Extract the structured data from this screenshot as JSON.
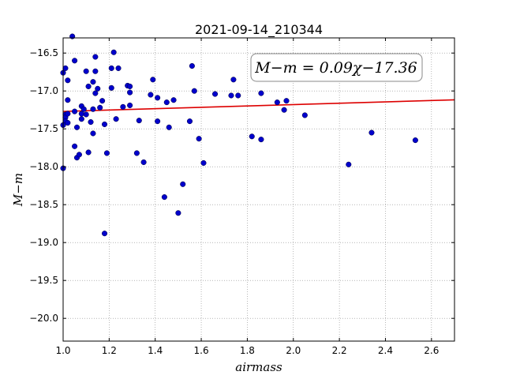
{
  "chart_data": {
    "type": "scatter",
    "title": "2021-09-14_210344",
    "xlabel": "airmass",
    "ylabel": "M−m",
    "xlim": [
      1.0,
      2.7
    ],
    "ylim": [
      -20.3,
      -16.3
    ],
    "y_inverted": true,
    "grid": true,
    "xticks": [
      "1.0",
      "1.2",
      "1.4",
      "1.6",
      "1.8",
      "2.0",
      "2.2",
      "2.4",
      "2.6"
    ],
    "yticks": [
      "−16.5",
      "−17.0",
      "−17.5",
      "−18.0",
      "−18.5",
      "−19.0",
      "−19.5",
      "−20.0"
    ],
    "annotation": "M−m = 0.09χ−17.36",
    "colors": {
      "points": "#0000cc",
      "fit_line": "#dd0000",
      "grid": "#888888"
    },
    "fit_line": {
      "slope": 0.09,
      "intercept": -17.36,
      "x": [
        1.0,
        2.7
      ]
    },
    "points": [
      {
        "x": 1.0,
        "y": -16.76
      },
      {
        "x": 1.01,
        "y": -16.7
      },
      {
        "x": 1.01,
        "y": -17.31
      },
      {
        "x": 1.01,
        "y": -17.35
      },
      {
        "x": 1.01,
        "y": -17.4
      },
      {
        "x": 1.0,
        "y": -17.45
      },
      {
        "x": 1.0,
        "y": -18.02
      },
      {
        "x": 1.02,
        "y": -16.86
      },
      {
        "x": 1.02,
        "y": -17.12
      },
      {
        "x": 1.02,
        "y": -17.3
      },
      {
        "x": 1.02,
        "y": -17.42
      },
      {
        "x": 1.04,
        "y": -16.28
      },
      {
        "x": 1.05,
        "y": -16.6
      },
      {
        "x": 1.05,
        "y": -17.27
      },
      {
        "x": 1.05,
        "y": -17.73
      },
      {
        "x": 1.06,
        "y": -17.48
      },
      {
        "x": 1.06,
        "y": -17.88
      },
      {
        "x": 1.07,
        "y": -17.84
      },
      {
        "x": 1.08,
        "y": -17.2
      },
      {
        "x": 1.08,
        "y": -17.3
      },
      {
        "x": 1.08,
        "y": -17.37
      },
      {
        "x": 1.09,
        "y": -17.24
      },
      {
        "x": 1.1,
        "y": -16.74
      },
      {
        "x": 1.1,
        "y": -17.31
      },
      {
        "x": 1.11,
        "y": -16.94
      },
      {
        "x": 1.11,
        "y": -17.81
      },
      {
        "x": 1.12,
        "y": -17.41
      },
      {
        "x": 1.13,
        "y": -16.88
      },
      {
        "x": 1.13,
        "y": -17.24
      },
      {
        "x": 1.13,
        "y": -17.56
      },
      {
        "x": 1.14,
        "y": -16.55
      },
      {
        "x": 1.14,
        "y": -16.74
      },
      {
        "x": 1.14,
        "y": -17.03
      },
      {
        "x": 1.15,
        "y": -16.97
      },
      {
        "x": 1.16,
        "y": -17.22
      },
      {
        "x": 1.17,
        "y": -17.13
      },
      {
        "x": 1.18,
        "y": -18.88
      },
      {
        "x": 1.18,
        "y": -17.44
      },
      {
        "x": 1.19,
        "y": -17.82
      },
      {
        "x": 1.21,
        "y": -16.7
      },
      {
        "x": 1.21,
        "y": -16.96
      },
      {
        "x": 1.22,
        "y": -16.49
      },
      {
        "x": 1.23,
        "y": -17.37
      },
      {
        "x": 1.24,
        "y": -16.7
      },
      {
        "x": 1.26,
        "y": -17.21
      },
      {
        "x": 1.28,
        "y": -16.93
      },
      {
        "x": 1.29,
        "y": -16.94
      },
      {
        "x": 1.29,
        "y": -17.02
      },
      {
        "x": 1.29,
        "y": -17.19
      },
      {
        "x": 1.32,
        "y": -17.82
      },
      {
        "x": 1.33,
        "y": -17.39
      },
      {
        "x": 1.35,
        "y": -17.94
      },
      {
        "x": 1.38,
        "y": -17.05
      },
      {
        "x": 1.39,
        "y": -16.85
      },
      {
        "x": 1.41,
        "y": -17.4
      },
      {
        "x": 1.41,
        "y": -17.09
      },
      {
        "x": 1.44,
        "y": -18.4
      },
      {
        "x": 1.45,
        "y": -17.15
      },
      {
        "x": 1.46,
        "y": -17.48
      },
      {
        "x": 1.48,
        "y": -17.12
      },
      {
        "x": 1.5,
        "y": -18.61
      },
      {
        "x": 1.52,
        "y": -18.23
      },
      {
        "x": 1.55,
        "y": -17.4
      },
      {
        "x": 1.56,
        "y": -16.67
      },
      {
        "x": 1.57,
        "y": -17.0
      },
      {
        "x": 1.59,
        "y": -17.63
      },
      {
        "x": 1.61,
        "y": -17.95
      },
      {
        "x": 1.66,
        "y": -17.04
      },
      {
        "x": 1.73,
        "y": -17.06
      },
      {
        "x": 1.74,
        "y": -16.85
      },
      {
        "x": 1.76,
        "y": -17.06
      },
      {
        "x": 1.82,
        "y": -17.6
      },
      {
        "x": 1.86,
        "y": -17.03
      },
      {
        "x": 1.86,
        "y": -17.64
      },
      {
        "x": 1.93,
        "y": -17.15
      },
      {
        "x": 1.96,
        "y": -17.25
      },
      {
        "x": 1.97,
        "y": -17.13
      },
      {
        "x": 2.05,
        "y": -17.32
      },
      {
        "x": 2.24,
        "y": -17.97
      },
      {
        "x": 2.34,
        "y": -17.55
      },
      {
        "x": 2.53,
        "y": -17.65
      }
    ]
  }
}
